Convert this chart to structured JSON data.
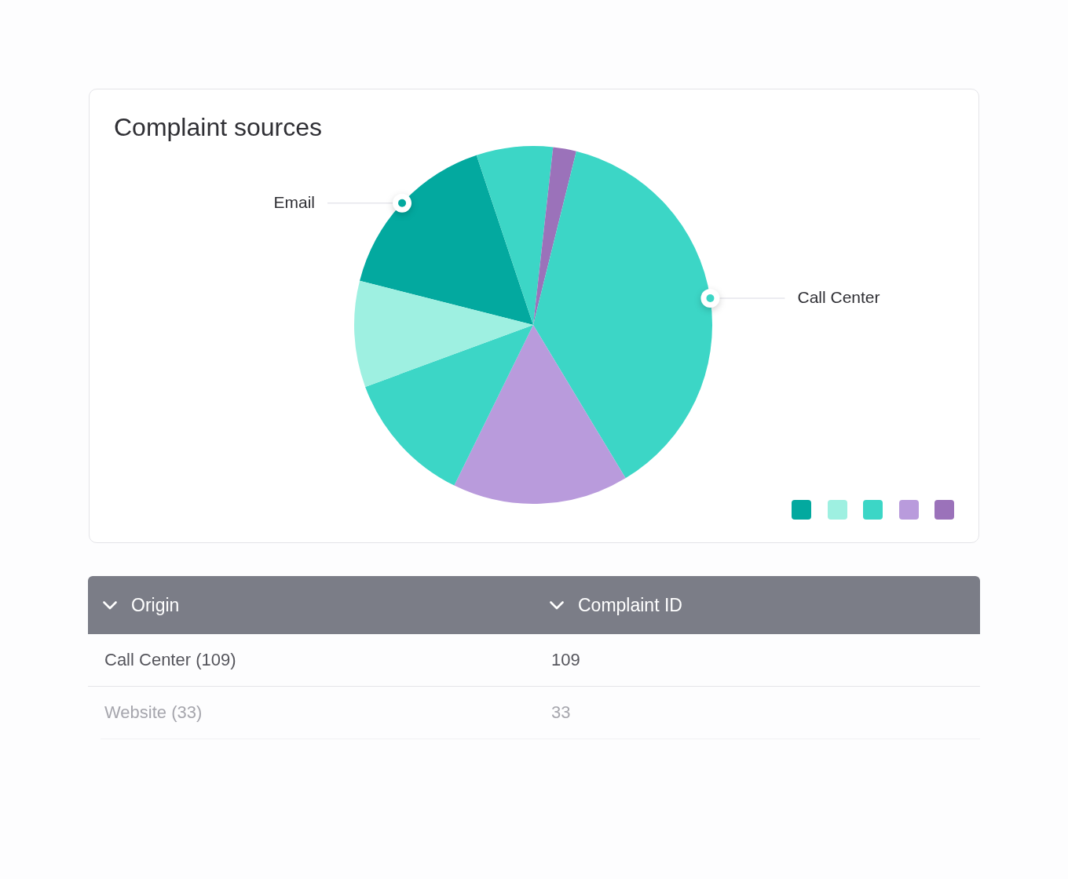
{
  "chart_data": {
    "type": "pie",
    "title": "Complaint sources",
    "categories": [
      "Email",
      null,
      null,
      "Call Center",
      null,
      null,
      null
    ],
    "values": [
      15.9,
      6.9,
      2.1,
      37.5,
      15.9,
      12.1,
      9.6
    ],
    "colors": [
      "#03a99f",
      "#3cd6c6",
      "#9b72ba",
      "#3cd6c6",
      "#b99bdc",
      "#3cd6c6",
      "#9ef0e1"
    ],
    "annotations": [
      "Origin",
      "Complaint ID",
      "Call Center (109)",
      "109",
      "Website (33)",
      "33"
    ]
  }
}
